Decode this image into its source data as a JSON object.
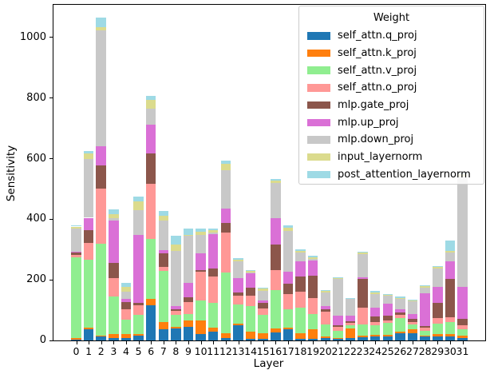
{
  "axes": {
    "xlabel": "Layer",
    "ylabel": "Sensitivity",
    "yticks": [
      0,
      200,
      400,
      600,
      800,
      1000
    ],
    "ylim": [
      0,
      1108
    ]
  },
  "legend": {
    "title": "Weight",
    "position": "upper right"
  },
  "chart_data": {
    "type": "bar",
    "stacked": true,
    "title": "",
    "xlabel": "Layer",
    "ylabel": "Sensitivity",
    "ylim": [
      0,
      1108
    ],
    "yticks": [
      0,
      200,
      400,
      600,
      800,
      1000
    ],
    "grid": false,
    "legend_title": "Weight",
    "legend_position": "upper right",
    "categories": [
      0,
      1,
      2,
      3,
      4,
      5,
      6,
      7,
      8,
      9,
      10,
      11,
      12,
      13,
      14,
      15,
      16,
      17,
      18,
      19,
      20,
      21,
      22,
      23,
      24,
      25,
      26,
      27,
      28,
      29,
      30,
      31
    ],
    "series": [
      {
        "name": "self_attn.q_proj",
        "color": "#1f77b4",
        "values": [
          3,
          36,
          12,
          8,
          7,
          16,
          115,
          36,
          40,
          45,
          21,
          30,
          7,
          50,
          5,
          5,
          27,
          36,
          5,
          5,
          7,
          5,
          7,
          10,
          12,
          14,
          25,
          23,
          14,
          12,
          14,
          7
        ]
      },
      {
        "name": "self_attn.k_proj",
        "color": "#ff7f0e",
        "values": [
          6,
          5,
          5,
          12,
          13,
          5,
          22,
          26,
          6,
          22,
          46,
          13,
          16,
          5,
          24,
          20,
          13,
          6,
          18,
          33,
          5,
          4,
          33,
          6,
          6,
          4,
          5,
          13,
          3,
          8,
          7,
          9
        ]
      },
      {
        "name": "self_attn.v_proj",
        "color": "#90ee90",
        "values": [
          265,
          225,
          302,
          126,
          48,
          63,
          198,
          167,
          38,
          20,
          66,
          81,
          202,
          64,
          85,
          60,
          127,
          60,
          86,
          48,
          40,
          24,
          11,
          38,
          33,
          40,
          44,
          18,
          16,
          36,
          39,
          20
        ]
      },
      {
        "name": "self_attn.o_proj",
        "color": "#ff9896",
        "values": [
          9,
          57,
          181,
          60,
          36,
          33,
          182,
          13,
          13,
          40,
          95,
          88,
          132,
          28,
          35,
          20,
          66,
          51,
          53,
          54,
          44,
          13,
          8,
          55,
          9,
          7,
          11,
          6,
          9,
          19,
          16,
          15
        ]
      },
      {
        "name": "mlp.gate_proj",
        "color": "#8c564b",
        "values": [
          6,
          40,
          79,
          50,
          22,
          6,
          100,
          45,
          5,
          15,
          5,
          26,
          30,
          12,
          25,
          18,
          83,
          35,
          50,
          73,
          8,
          4,
          4,
          93,
          20,
          18,
          7,
          11,
          5,
          48,
          127,
          20
        ]
      },
      {
        "name": "mlp.up_proj",
        "color": "#da70d6",
        "values": [
          5,
          42,
          63,
          140,
          10,
          224,
          95,
          12,
          11,
          48,
          55,
          114,
          49,
          48,
          47,
          8,
          88,
          39,
          48,
          50,
          10,
          32,
          20,
          6,
          29,
          39,
          12,
          15,
          110,
          55,
          59,
          105
        ]
      },
      {
        "name": "mlp.down_proj",
        "color": "#c8c8c8",
        "values": [
          75,
          195,
          382,
          8,
          25,
          83,
          53,
          97,
          182,
          155,
          60,
          4,
          127,
          55,
          3,
          33,
          117,
          134,
          31,
          6,
          45,
          120,
          54,
          78,
          44,
          26,
          35,
          44,
          18,
          60,
          29,
          364
        ]
      },
      {
        "name": "input_layernorm",
        "color": "#dbdb8d",
        "values": [
          7,
          18,
          9,
          12,
          16,
          29,
          29,
          15,
          22,
          4,
          12,
          9,
          19,
          5,
          7,
          7,
          6,
          11,
          5,
          6,
          5,
          3,
          2,
          4,
          6,
          3,
          2,
          2,
          4,
          4,
          4,
          8
        ]
      },
      {
        "name": "post_attention_layernorm",
        "color": "#9edae5",
        "values": [
          4,
          7,
          32,
          16,
          12,
          17,
          12,
          16,
          28,
          20,
          10,
          4,
          12,
          4,
          1,
          4,
          7,
          9,
          6,
          4,
          2,
          4,
          1,
          1,
          4,
          2,
          5,
          2,
          3,
          3,
          35,
          6
        ]
      }
    ]
  }
}
